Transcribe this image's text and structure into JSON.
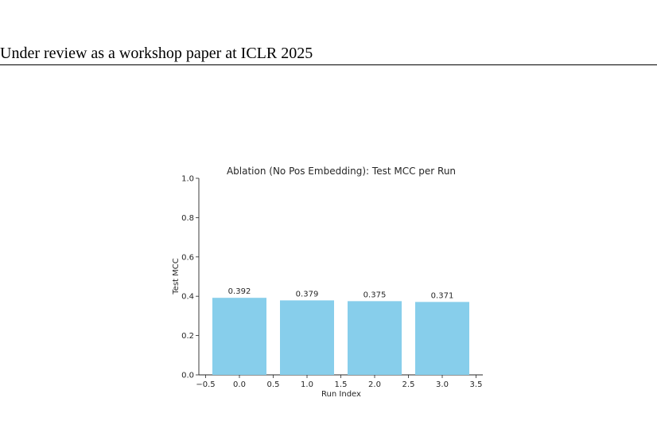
{
  "header": {
    "text": "Under review as a workshop paper at ICLR 2025"
  },
  "chart_data": {
    "type": "bar",
    "title": "Ablation (No Pos Embedding): Test MCC per Run",
    "xlabel": "Run Index",
    "ylabel": "Test MCC",
    "x": [
      0,
      1,
      2,
      3
    ],
    "values": [
      0.392,
      0.379,
      0.375,
      0.371
    ],
    "value_labels": [
      "0.392",
      "0.379",
      "0.375",
      "0.371"
    ],
    "bar_width": 0.8,
    "xlim": [
      -0.6,
      3.6
    ],
    "ylim": [
      0,
      1.0
    ],
    "xticks": [
      -0.5,
      0.0,
      0.5,
      1.0,
      1.5,
      2.0,
      2.5,
      3.0,
      3.5
    ],
    "xtick_labels": [
      "−0.5",
      "0.0",
      "0.5",
      "1.0",
      "1.5",
      "2.0",
      "2.5",
      "3.0",
      "3.5"
    ],
    "yticks": [
      0.0,
      0.2,
      0.4,
      0.6,
      0.8,
      1.0
    ],
    "ytick_labels": [
      "0.0",
      "0.2",
      "0.4",
      "0.6",
      "0.8",
      "1.0"
    ],
    "grid": false,
    "legend": "none",
    "bar_color": "#87ceeb"
  }
}
